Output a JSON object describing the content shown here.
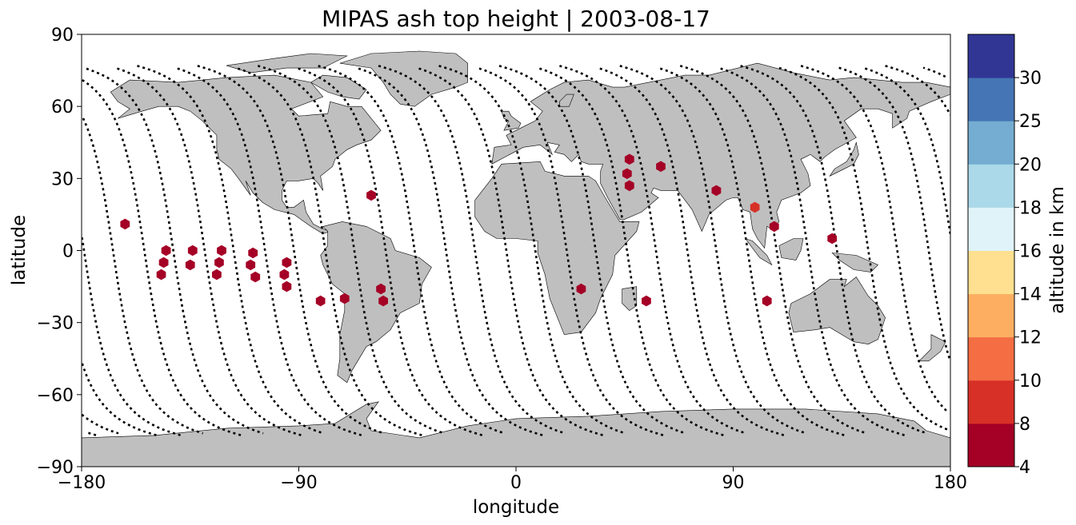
{
  "title": "MIPAS ash top height | 2003-08-17",
  "x_axis": {
    "label": "longitude",
    "ticks": [
      {
        "value": -180,
        "label": "−180"
      },
      {
        "value": -90,
        "label": "−90"
      },
      {
        "value": 0,
        "label": "0"
      },
      {
        "value": 90,
        "label": "90"
      },
      {
        "value": 180,
        "label": "180"
      }
    ]
  },
  "y_axis": {
    "label": "latitude",
    "ticks": [
      {
        "value": 90,
        "label": "90"
      },
      {
        "value": 60,
        "label": "60"
      },
      {
        "value": 30,
        "label": "30"
      },
      {
        "value": 0,
        "label": "0"
      },
      {
        "value": -30,
        "label": "−30"
      },
      {
        "value": -60,
        "label": "−60"
      },
      {
        "value": -90,
        "label": "−90"
      }
    ]
  },
  "colorbar": {
    "label": "altitude in km",
    "boundaries": [
      4,
      8,
      10,
      12,
      14,
      16,
      18,
      20,
      25,
      30
    ],
    "tick_labels": [
      "4",
      "8",
      "10",
      "12",
      "14",
      "16",
      "18",
      "20",
      "25",
      "30"
    ],
    "colors": [
      "#a50026",
      "#d73027",
      "#f46d43",
      "#fdae61",
      "#fee090",
      "#e0f3f8",
      "#abd9e9",
      "#74add1",
      "#4575b4",
      "#313695"
    ]
  },
  "colors": {
    "land": "#bfbfbf",
    "coast": "#000000",
    "track": "#000000",
    "marker_dark": "#a50026",
    "marker_orange": "#e34a33"
  },
  "chart_data": {
    "type": "scatter",
    "title": "MIPAS ash top height | 2003-08-17",
    "xlabel": "longitude",
    "ylabel": "latitude",
    "xlim": [
      -180,
      180
    ],
    "ylim": [
      -90,
      90
    ],
    "colorbar_label": "altitude in km",
    "ash_detections": [
      {
        "lon": -162,
        "lat": 11,
        "alt_km": 6
      },
      {
        "lon": -145,
        "lat": 0,
        "alt_km": 6
      },
      {
        "lon": -146,
        "lat": -5,
        "alt_km": 6
      },
      {
        "lon": -147,
        "lat": -10,
        "alt_km": 6
      },
      {
        "lon": -134,
        "lat": 0,
        "alt_km": 6
      },
      {
        "lon": -135,
        "lat": -6,
        "alt_km": 6
      },
      {
        "lon": -122,
        "lat": 0,
        "alt_km": 6
      },
      {
        "lon": -123,
        "lat": -5,
        "alt_km": 6
      },
      {
        "lon": -124,
        "lat": -10,
        "alt_km": 6
      },
      {
        "lon": -109,
        "lat": -1,
        "alt_km": 6
      },
      {
        "lon": -110,
        "lat": -6,
        "alt_km": 6
      },
      {
        "lon": -108,
        "lat": -11,
        "alt_km": 6
      },
      {
        "lon": -95,
        "lat": -5,
        "alt_km": 6
      },
      {
        "lon": -96,
        "lat": -10,
        "alt_km": 6
      },
      {
        "lon": -95,
        "lat": -15,
        "alt_km": 6
      },
      {
        "lon": -81,
        "lat": -21,
        "alt_km": 6
      },
      {
        "lon": -71,
        "lat": -20,
        "alt_km": 6
      },
      {
        "lon": -60,
        "lat": 23,
        "alt_km": 6
      },
      {
        "lon": -56,
        "lat": -16,
        "alt_km": 6
      },
      {
        "lon": -55,
        "lat": -21,
        "alt_km": 6
      },
      {
        "lon": 27,
        "lat": -16,
        "alt_km": 6
      },
      {
        "lon": 47,
        "lat": 38,
        "alt_km": 6
      },
      {
        "lon": 46,
        "lat": 32,
        "alt_km": 6
      },
      {
        "lon": 47,
        "lat": 27,
        "alt_km": 6
      },
      {
        "lon": 60,
        "lat": 35,
        "alt_km": 6
      },
      {
        "lon": 54,
        "lat": -21,
        "alt_km": 6
      },
      {
        "lon": 83,
        "lat": 25,
        "alt_km": 6
      },
      {
        "lon": 99,
        "lat": 18,
        "alt_km": 9
      },
      {
        "lon": 107,
        "lat": 10,
        "alt_km": 6
      },
      {
        "lon": 104,
        "lat": -21,
        "alt_km": 6
      },
      {
        "lon": 131,
        "lat": 5,
        "alt_km": 6
      }
    ],
    "orbit_tracks_ascending_equator_lon": [
      -179,
      -154,
      -129,
      -104,
      -79,
      -54,
      -29,
      -4,
      21,
      46,
      71,
      96,
      121,
      146,
      171
    ],
    "orbit_tracks_descending_equator_lon": [
      -167,
      -142,
      -117,
      -92,
      -67,
      -42,
      -17,
      8,
      33,
      58,
      83,
      108,
      133,
      158
    ]
  }
}
